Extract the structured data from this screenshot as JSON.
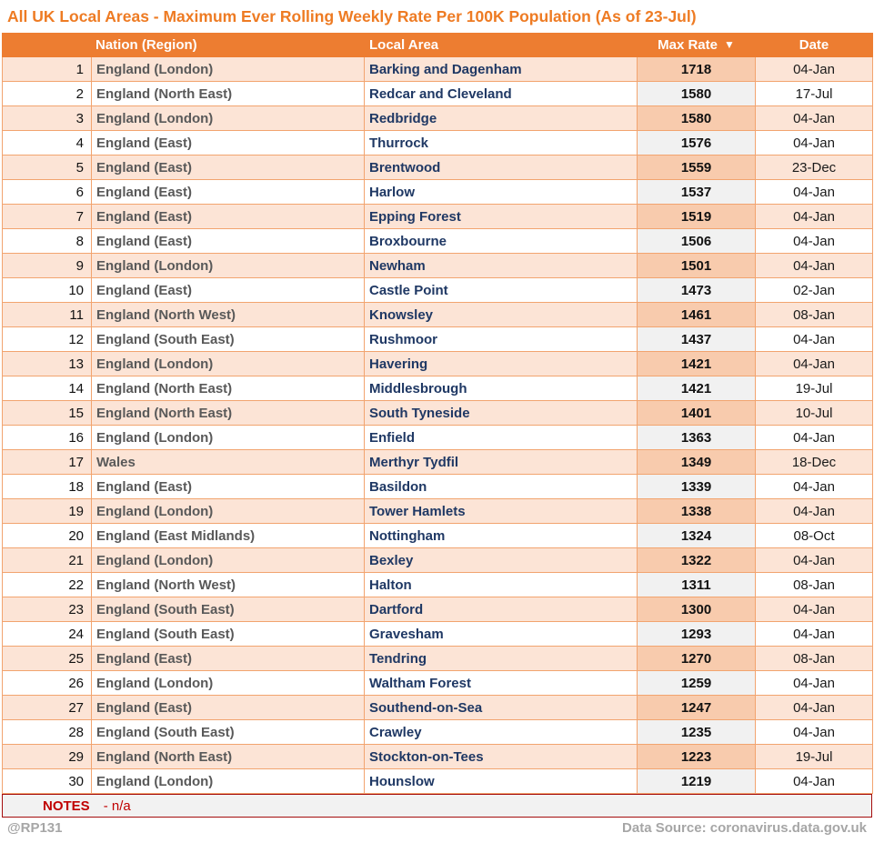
{
  "title": "All UK Local Areas - Maximum Ever Rolling Weekly Rate Per 100K Population (As of 23-Jul)",
  "chart_data": {
    "type": "table",
    "title": "All UK Local Areas - Maximum Ever Rolling Weekly Rate Per 100K Population (As of 23-Jul)",
    "columns": [
      "Nation (Region)",
      "Local Area",
      "Max Rate",
      "Date"
    ],
    "sort": {
      "column": "Max Rate",
      "direction": "descending",
      "indicator": "▼"
    },
    "rows": [
      {
        "rank": 1,
        "nation": "England (London)",
        "area": "Barking and Dagenham",
        "rate": 1718,
        "date": "04-Jan"
      },
      {
        "rank": 2,
        "nation": "England (North East)",
        "area": "Redcar and Cleveland",
        "rate": 1580,
        "date": "17-Jul"
      },
      {
        "rank": 3,
        "nation": "England (London)",
        "area": "Redbridge",
        "rate": 1580,
        "date": "04-Jan"
      },
      {
        "rank": 4,
        "nation": "England (East)",
        "area": "Thurrock",
        "rate": 1576,
        "date": "04-Jan"
      },
      {
        "rank": 5,
        "nation": "England (East)",
        "area": "Brentwood",
        "rate": 1559,
        "date": "23-Dec"
      },
      {
        "rank": 6,
        "nation": "England (East)",
        "area": "Harlow",
        "rate": 1537,
        "date": "04-Jan"
      },
      {
        "rank": 7,
        "nation": "England (East)",
        "area": "Epping Forest",
        "rate": 1519,
        "date": "04-Jan"
      },
      {
        "rank": 8,
        "nation": "England (East)",
        "area": "Broxbourne",
        "rate": 1506,
        "date": "04-Jan"
      },
      {
        "rank": 9,
        "nation": "England (London)",
        "area": "Newham",
        "rate": 1501,
        "date": "04-Jan"
      },
      {
        "rank": 10,
        "nation": "England (East)",
        "area": "Castle Point",
        "rate": 1473,
        "date": "02-Jan"
      },
      {
        "rank": 11,
        "nation": "England (North West)",
        "area": "Knowsley",
        "rate": 1461,
        "date": "08-Jan"
      },
      {
        "rank": 12,
        "nation": "England (South East)",
        "area": "Rushmoor",
        "rate": 1437,
        "date": "04-Jan"
      },
      {
        "rank": 13,
        "nation": "England (London)",
        "area": "Havering",
        "rate": 1421,
        "date": "04-Jan"
      },
      {
        "rank": 14,
        "nation": "England (North East)",
        "area": "Middlesbrough",
        "rate": 1421,
        "date": "19-Jul"
      },
      {
        "rank": 15,
        "nation": "England (North East)",
        "area": "South Tyneside",
        "rate": 1401,
        "date": "10-Jul"
      },
      {
        "rank": 16,
        "nation": "England (London)",
        "area": "Enfield",
        "rate": 1363,
        "date": "04-Jan"
      },
      {
        "rank": 17,
        "nation": "Wales",
        "area": "Merthyr Tydfil",
        "rate": 1349,
        "date": "18-Dec"
      },
      {
        "rank": 18,
        "nation": "England (East)",
        "area": "Basildon",
        "rate": 1339,
        "date": "04-Jan"
      },
      {
        "rank": 19,
        "nation": "England (London)",
        "area": "Tower Hamlets",
        "rate": 1338,
        "date": "04-Jan"
      },
      {
        "rank": 20,
        "nation": "England (East Midlands)",
        "area": "Nottingham",
        "rate": 1324,
        "date": "08-Oct"
      },
      {
        "rank": 21,
        "nation": "England (London)",
        "area": "Bexley",
        "rate": 1322,
        "date": "04-Jan"
      },
      {
        "rank": 22,
        "nation": "England (North West)",
        "area": "Halton",
        "rate": 1311,
        "date": "08-Jan"
      },
      {
        "rank": 23,
        "nation": "England (South East)",
        "area": "Dartford",
        "rate": 1300,
        "date": "04-Jan"
      },
      {
        "rank": 24,
        "nation": "England (South East)",
        "area": "Gravesham",
        "rate": 1293,
        "date": "04-Jan"
      },
      {
        "rank": 25,
        "nation": "England (East)",
        "area": "Tendring",
        "rate": 1270,
        "date": "08-Jan"
      },
      {
        "rank": 26,
        "nation": "England (London)",
        "area": "Waltham Forest",
        "rate": 1259,
        "date": "04-Jan"
      },
      {
        "rank": 27,
        "nation": "England (East)",
        "area": "Southend-on-Sea",
        "rate": 1247,
        "date": "04-Jan"
      },
      {
        "rank": 28,
        "nation": "England (South East)",
        "area": "Crawley",
        "rate": 1235,
        "date": "04-Jan"
      },
      {
        "rank": 29,
        "nation": "England (North East)",
        "area": "Stockton-on-Tees",
        "rate": 1223,
        "date": "19-Jul"
      },
      {
        "rank": 30,
        "nation": "England (London)",
        "area": "Hounslow",
        "rate": 1219,
        "date": "04-Jan"
      }
    ]
  },
  "notes": {
    "label": "NOTES",
    "value": "- n/a"
  },
  "footer": {
    "left": "@RP131",
    "right": "Data Source: coronavirus.data.gov.uk"
  },
  "colors": {
    "title_orange": "#EE7B23",
    "header_orange": "#ED7D31",
    "row_peach": "#FCE4D6",
    "rate_peach": "#F8CBAD",
    "rate_gray": "#F1F1F1",
    "grid_border": "#F2A46F",
    "notes_red": "#C00000",
    "notes_bg": "#F2F2F2",
    "footer_gray": "#A6A6A6",
    "nation_text": "#595959",
    "area_text": "#1F3864"
  }
}
